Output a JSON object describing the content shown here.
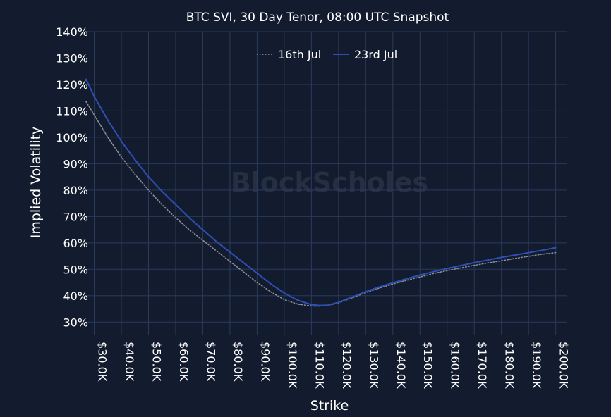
{
  "chart_data": {
    "type": "line",
    "title": "BTC SVI, 30 Day Tenor, 08:00 UTC Snapshot",
    "xlabel": "Strike",
    "ylabel": "Implied Volatility",
    "watermark": "BlockScholes",
    "xlim": [
      27000,
      204000
    ],
    "ylim": [
      25,
      140
    ],
    "grid": true,
    "legend_position": "top-center",
    "x_ticks": [
      30000,
      40000,
      50000,
      60000,
      70000,
      80000,
      90000,
      100000,
      110000,
      120000,
      130000,
      140000,
      150000,
      160000,
      170000,
      180000,
      190000,
      200000
    ],
    "x_tick_labels": [
      "$30.0K",
      "$40.0K",
      "$50.0K",
      "$60.0K",
      "$70.0K",
      "$80.0K",
      "$90.0K",
      "$100.0K",
      "$110.0K",
      "$120.0K",
      "$130.0K",
      "$140.0K",
      "$150.0K",
      "$160.0K",
      "$170.0K",
      "$180.0K",
      "$190.0K",
      "$200.0K"
    ],
    "y_ticks": [
      30,
      40,
      50,
      60,
      70,
      80,
      90,
      100,
      110,
      120,
      130,
      140
    ],
    "y_tick_labels": [
      "30%",
      "40%",
      "50%",
      "60%",
      "70%",
      "80%",
      "90%",
      "100%",
      "110%",
      "120%",
      "130%",
      "140%"
    ],
    "series": [
      {
        "name": "16th Jul",
        "color": "#8a8f99",
        "dash": "dotted",
        "x": [
          27000,
          30000,
          35000,
          40000,
          45000,
          50000,
          55000,
          60000,
          65000,
          70000,
          75000,
          80000,
          85000,
          90000,
          95000,
          100000,
          105000,
          110000,
          113000,
          116000,
          120000,
          125000,
          130000,
          135000,
          140000,
          145000,
          150000,
          155000,
          160000,
          165000,
          170000,
          175000,
          180000,
          185000,
          190000,
          195000,
          200000
        ],
        "y": [
          113.5,
          108.5,
          100,
          92.5,
          86,
          80,
          74.5,
          69.5,
          65,
          61,
          57,
          53,
          49,
          45,
          41.5,
          38.5,
          36.8,
          36.1,
          36.1,
          36.3,
          37.3,
          39.2,
          41.2,
          42.9,
          44.4,
          45.8,
          47.1,
          48.4,
          49.5,
          50.5,
          51.5,
          52.4,
          53.2,
          54.1,
          54.9,
          55.7,
          56.3
        ]
      },
      {
        "name": "23rd Jul",
        "color": "#2f4fb4",
        "dash": "solid",
        "x": [
          27000,
          30000,
          35000,
          40000,
          45000,
          50000,
          55000,
          60000,
          65000,
          70000,
          75000,
          80000,
          85000,
          90000,
          95000,
          100000,
          105000,
          110000,
          113000,
          116000,
          120000,
          125000,
          130000,
          135000,
          140000,
          145000,
          150000,
          155000,
          160000,
          165000,
          170000,
          175000,
          180000,
          185000,
          190000,
          195000,
          200000
        ],
        "y": [
          122,
          115.5,
          106.5,
          98.5,
          91.5,
          85,
          79.5,
          74.5,
          69.5,
          65,
          60.5,
          56.5,
          52.5,
          48.5,
          44.5,
          41,
          38.3,
          36.6,
          36.3,
          36.4,
          37.5,
          39.5,
          41.5,
          43.3,
          44.9,
          46.4,
          47.8,
          49.1,
          50.3,
          51.4,
          52.5,
          53.5,
          54.5,
          55.4,
          56.3,
          57.2,
          58.2
        ]
      }
    ]
  }
}
